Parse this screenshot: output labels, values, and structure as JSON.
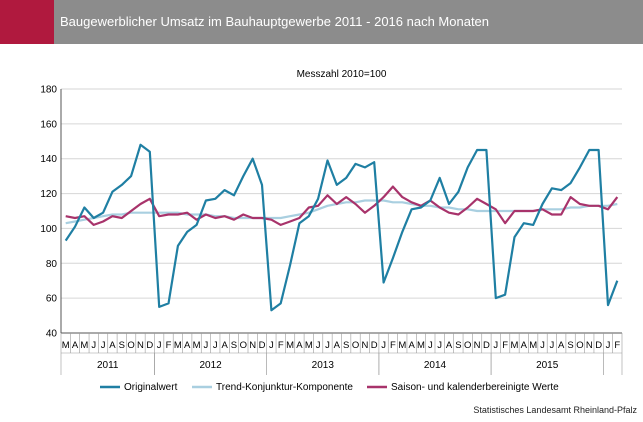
{
  "header": {
    "title": "Baugewerblicher Umsatz im Bauhauptgewerbe 2011 - 2016 nach Monaten"
  },
  "footer": {
    "source": "Statistisches Landesamt Rheinland-Pfalz"
  },
  "colors": {
    "header_bg": "#8c8c8c",
    "accent": "#b0193e",
    "original": "#1f7fa3",
    "trend": "#a9cfe0",
    "seasonal": "#a8336b"
  },
  "chart_data": {
    "type": "line",
    "title": "Messzahl 2010=100",
    "xlabel": "",
    "ylabel": "",
    "ylim": [
      40,
      180
    ],
    "yticks": [
      40,
      60,
      80,
      100,
      120,
      140,
      160,
      180
    ],
    "grid": true,
    "legend_position": "bottom",
    "x": [
      "M",
      "A",
      "M",
      "J",
      "J",
      "A",
      "S",
      "O",
      "N",
      "D",
      "J",
      "F",
      "M",
      "A",
      "M",
      "J",
      "J",
      "A",
      "S",
      "O",
      "N",
      "D",
      "J",
      "F",
      "M",
      "A",
      "M",
      "J",
      "J",
      "A",
      "S",
      "O",
      "N",
      "D",
      "J",
      "F",
      "M",
      "A",
      "M",
      "J",
      "J",
      "A",
      "S",
      "O",
      "N",
      "D",
      "J",
      "F",
      "M",
      "A",
      "M",
      "J",
      "J",
      "A",
      "S",
      "O",
      "N",
      "D",
      "J",
      "F"
    ],
    "years": [
      {
        "label": "2011",
        "start": 0,
        "end": 9
      },
      {
        "label": "2012",
        "start": 10,
        "end": 21
      },
      {
        "label": "2013",
        "start": 22,
        "end": 33
      },
      {
        "label": "2014",
        "start": 34,
        "end": 45
      },
      {
        "label": "2015",
        "start": 46,
        "end": 57
      },
      {
        "label": "",
        "start": 58,
        "end": 59
      }
    ],
    "series": [
      {
        "name": "Originalwert",
        "color": "#1f7fa3",
        "values": [
          93,
          101,
          112,
          106,
          109,
          121,
          125,
          130,
          148,
          144,
          55,
          57,
          90,
          98,
          102,
          116,
          117,
          122,
          119,
          130,
          140,
          125,
          53,
          57,
          79,
          103,
          107,
          117,
          139,
          125,
          129,
          137,
          135,
          138,
          69,
          83,
          98,
          111,
          112,
          116,
          129,
          114,
          121,
          135,
          145,
          145,
          60,
          62,
          95,
          103,
          102,
          114,
          123,
          122,
          126,
          135,
          145,
          145,
          56,
          70
        ]
      },
      {
        "name": "Trend-Konjunktur-Komponente",
        "color": "#a9cfe0",
        "values": [
          103,
          104,
          105,
          106,
          107,
          108,
          108,
          109,
          109,
          109,
          109,
          109,
          109,
          108,
          108,
          108,
          107,
          107,
          106,
          106,
          106,
          106,
          106,
          106,
          107,
          108,
          109,
          111,
          113,
          114,
          115,
          115,
          116,
          116,
          116,
          115,
          115,
          114,
          113,
          113,
          112,
          112,
          111,
          111,
          110,
          110,
          110,
          110,
          110,
          110,
          110,
          111,
          111,
          111,
          112,
          112,
          113,
          113,
          113,
          114
        ]
      },
      {
        "name": "Saison- und kalenderbereinigte Werte",
        "color": "#a8336b",
        "values": [
          107,
          106,
          107,
          102,
          104,
          107,
          106,
          110,
          114,
          117,
          107,
          108,
          108,
          109,
          105,
          108,
          106,
          107,
          105,
          108,
          106,
          106,
          105,
          102,
          104,
          106,
          112,
          113,
          119,
          114,
          118,
          114,
          109,
          113,
          118,
          124,
          118,
          115,
          113,
          116,
          112,
          109,
          108,
          112,
          117,
          114,
          111,
          103,
          110,
          110,
          110,
          111,
          108,
          108,
          118,
          114,
          113,
          113,
          111,
          118
        ]
      }
    ]
  }
}
